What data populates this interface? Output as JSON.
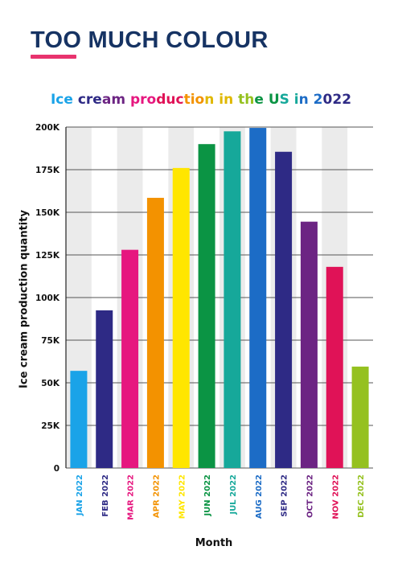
{
  "page": {
    "heading": "TOO MUCH COLOUR",
    "heading_color": "#163363",
    "accent_color": "#e8336e"
  },
  "chart_data": {
    "type": "bar",
    "title": "Ice cream production in the US in 2022",
    "xlabel": "Month",
    "ylabel": "Ice cream production quantity",
    "categories": [
      "JAN 2022",
      "FEB 2022",
      "MAR 2022",
      "APR 2022",
      "MAY 2022",
      "JUN 2022",
      "JUL 2022",
      "AUG 2022",
      "SEP 2022",
      "OCT 2022",
      "NOV 2022",
      "DEC 2022"
    ],
    "values": [
      57000,
      92500,
      128000,
      158500,
      176000,
      190000,
      197500,
      199500,
      185500,
      144500,
      118000,
      59500
    ],
    "colors": [
      "#1aa3e8",
      "#2e2a85",
      "#e6177f",
      "#f39200",
      "#ffe600",
      "#0b9444",
      "#16a89a",
      "#1c6cc6",
      "#2e2a85",
      "#6c2483",
      "#e01257",
      "#95c11f"
    ],
    "ylim": [
      0,
      200000
    ],
    "yticks": [
      0,
      25000,
      50000,
      75000,
      100000,
      125000,
      150000,
      175000,
      200000
    ],
    "ytick_labels": [
      "0",
      "25K",
      "50K",
      "75K",
      "100K",
      "125K",
      "150K",
      "175K",
      "200K"
    ],
    "grid": true,
    "band_color": "#ebebeb"
  }
}
